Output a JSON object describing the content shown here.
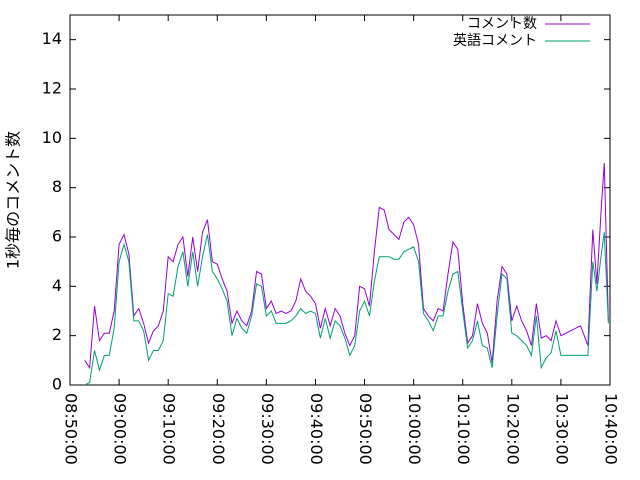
{
  "chart_data": {
    "type": "line",
    "y_label": "1秒毎のコメント数",
    "x": [
      "08:53:00",
      "08:54:00",
      "08:55:00",
      "08:56:00",
      "08:57:00",
      "08:58:00",
      "08:59:00",
      "09:00:00",
      "09:01:00",
      "09:02:00",
      "09:03:00",
      "09:04:00",
      "09:05:00",
      "09:06:00",
      "09:07:00",
      "09:08:00",
      "09:09:00",
      "09:10:00",
      "09:11:00",
      "09:12:00",
      "09:13:00",
      "09:14:00",
      "09:15:00",
      "09:16:00",
      "09:17:00",
      "09:18:00",
      "09:19:00",
      "09:20:00",
      "09:21:00",
      "09:22:00",
      "09:23:00",
      "09:24:00",
      "09:25:00",
      "09:26:00",
      "09:27:00",
      "09:28:00",
      "09:29:00",
      "09:30:00",
      "09:31:00",
      "09:32:00",
      "09:33:00",
      "09:34:00",
      "09:35:00",
      "09:36:00",
      "09:37:00",
      "09:38:00",
      "09:39:00",
      "09:40:00",
      "09:41:00",
      "09:42:00",
      "09:43:00",
      "09:44:00",
      "09:45:00",
      "09:46:00",
      "09:47:00",
      "09:48:00",
      "09:49:00",
      "09:50:00",
      "09:51:00",
      "09:52:00",
      "09:53:00",
      "09:54:00",
      "09:55:00",
      "09:56:00",
      "09:57:00",
      "09:58:00",
      "09:59:00",
      "10:00:00",
      "10:01:00",
      "10:02:00",
      "10:03:00",
      "10:04:00",
      "10:05:00",
      "10:06:00",
      "10:07:00",
      "10:08:00",
      "10:09:00",
      "10:10:00",
      "10:11:00",
      "10:12:00",
      "10:13:00",
      "10:14:00",
      "10:15:00",
      "10:16:00",
      "10:17:00",
      "10:18:00",
      "10:19:00",
      "10:20:00",
      "10:21:00",
      "10:22:00",
      "10:23:00",
      "10:24:00",
      "10:25:00",
      "10:26:00",
      "10:27:00",
      "10:28:00",
      "10:29:00",
      "10:30:00",
      "10:34:00",
      "10:35:30",
      "10:36:30",
      "10:37:20",
      "10:38:10",
      "10:38:50",
      "10:39:40"
    ],
    "series": [
      {
        "name": "コメント数",
        "color": "#9400d3",
        "values": [
          1.0,
          0.7,
          3.2,
          1.8,
          2.1,
          2.1,
          3.0,
          5.7,
          6.1,
          5.3,
          2.8,
          3.1,
          2.5,
          1.7,
          2.2,
          2.4,
          3.0,
          5.2,
          5.0,
          5.7,
          6.0,
          4.4,
          6.0,
          4.6,
          6.2,
          6.7,
          5.0,
          4.9,
          4.3,
          3.8,
          2.5,
          3.0,
          2.6,
          2.4,
          3.0,
          4.6,
          4.5,
          3.1,
          3.4,
          2.9,
          3.0,
          2.9,
          3.0,
          3.4,
          4.3,
          3.8,
          3.6,
          3.3,
          2.3,
          3.1,
          2.4,
          3.1,
          2.8,
          2.1,
          1.6,
          2.0,
          4.0,
          3.9,
          3.2,
          5.4,
          7.2,
          7.1,
          6.3,
          6.1,
          5.9,
          6.6,
          6.8,
          6.5,
          5.7,
          3.1,
          2.8,
          2.6,
          3.1,
          3.0,
          4.5,
          5.8,
          5.5,
          3.3,
          1.7,
          2.0,
          3.3,
          2.5,
          2.1,
          0.9,
          3.4,
          4.8,
          4.5,
          2.6,
          3.2,
          2.6,
          2.2,
          1.6,
          3.3,
          1.9,
          2.0,
          1.8,
          2.6,
          2.0,
          2.4,
          1.6,
          6.3,
          4.1,
          7.0,
          9.0,
          2.6
        ]
      },
      {
        "name": "英語コメント",
        "color": "#009e73",
        "values": [
          0.0,
          0.1,
          1.4,
          0.6,
          1.2,
          1.2,
          2.3,
          5.0,
          5.7,
          5.0,
          2.6,
          2.6,
          2.2,
          1.0,
          1.4,
          1.4,
          1.8,
          3.7,
          3.6,
          4.8,
          5.4,
          4.0,
          5.4,
          4.0,
          5.2,
          6.1,
          4.6,
          4.3,
          3.9,
          3.4,
          2.0,
          2.7,
          2.3,
          2.1,
          2.8,
          4.1,
          4.0,
          2.8,
          3.0,
          2.5,
          2.5,
          2.5,
          2.6,
          2.8,
          3.1,
          2.9,
          3.0,
          2.9,
          1.9,
          2.7,
          1.9,
          2.6,
          2.4,
          1.9,
          1.2,
          1.6,
          3.0,
          3.4,
          2.8,
          4.2,
          5.2,
          5.2,
          5.2,
          5.1,
          5.1,
          5.4,
          5.5,
          5.6,
          5.0,
          2.9,
          2.6,
          2.2,
          2.8,
          2.8,
          3.8,
          4.5,
          4.6,
          3.0,
          1.5,
          1.8,
          2.6,
          1.6,
          1.5,
          0.7,
          2.8,
          4.5,
          4.3,
          2.1,
          2.0,
          1.8,
          1.6,
          1.2,
          2.8,
          0.7,
          1.1,
          1.3,
          2.2,
          1.2,
          1.2,
          1.2,
          5.0,
          3.8,
          5.2,
          6.2,
          2.5
        ]
      }
    ],
    "xlim": [
      "08:50:00",
      "10:40:00"
    ],
    "xticks": [
      "08:50:00",
      "09:00:00",
      "09:10:00",
      "09:20:00",
      "09:30:00",
      "09:40:00",
      "09:50:00",
      "10:00:00",
      "10:10:00",
      "10:20:00",
      "10:30:00",
      "10:40:00"
    ],
    "ylim": [
      0,
      15
    ],
    "yticks": [
      0,
      2,
      4,
      6,
      8,
      10,
      12,
      14
    ],
    "legend": "upper right",
    "grid": false
  }
}
